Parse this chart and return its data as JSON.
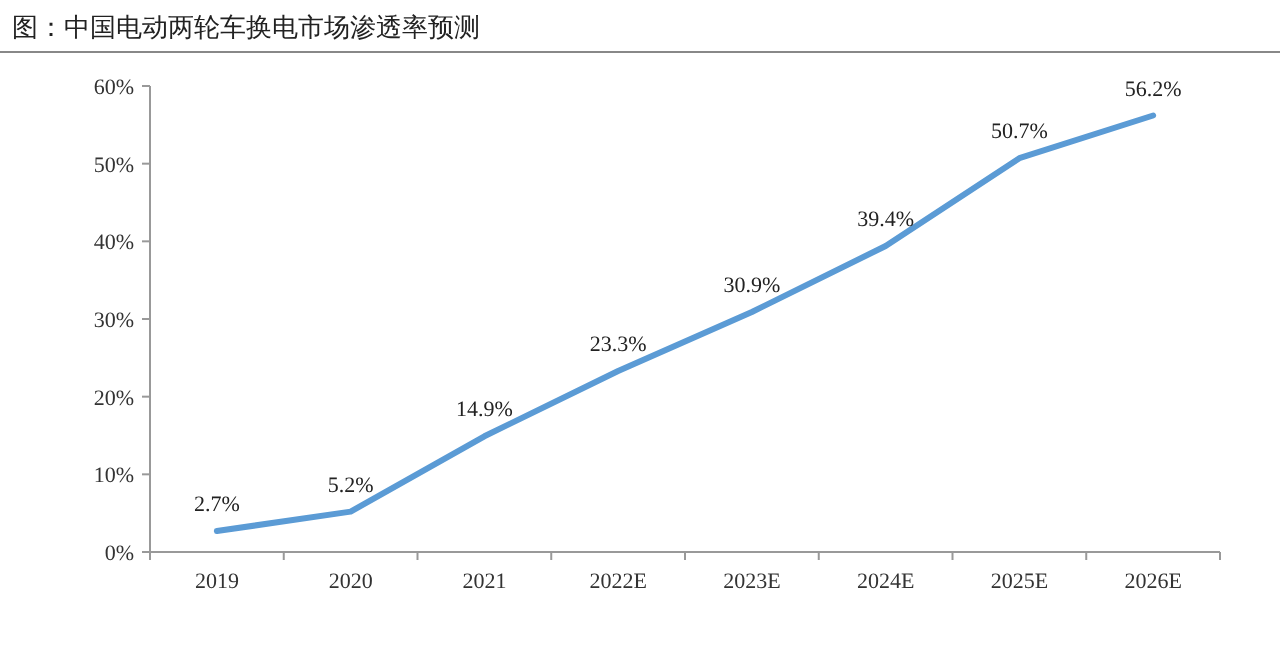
{
  "chart_data": {
    "type": "line",
    "title": "图：中国电动两轮车换电市场渗透率预测",
    "categories": [
      "2019",
      "2020",
      "2021",
      "2022E",
      "2023E",
      "2024E",
      "2025E",
      "2026E"
    ],
    "series": [
      {
        "color": "#5b9bd5",
        "values": [
          2.7,
          5.2,
          14.9,
          23.3,
          30.9,
          39.4,
          50.7,
          56.2
        ],
        "value_labels": [
          "2.7%",
          "5.2%",
          "14.9%",
          "23.3%",
          "30.9%",
          "39.4%",
          "50.7%",
          "56.2%"
        ]
      }
    ],
    "ylim": [
      0,
      60
    ],
    "yticks": [
      {
        "value": 0,
        "label": "0%"
      },
      {
        "value": 10,
        "label": "10%"
      },
      {
        "value": 20,
        "label": "20%"
      },
      {
        "value": 30,
        "label": "30%"
      },
      {
        "value": 40,
        "label": "40%"
      },
      {
        "value": 50,
        "label": "50%"
      },
      {
        "value": 60,
        "label": "60%"
      }
    ],
    "grid": false,
    "marker": "none",
    "line_style": "solid"
  }
}
